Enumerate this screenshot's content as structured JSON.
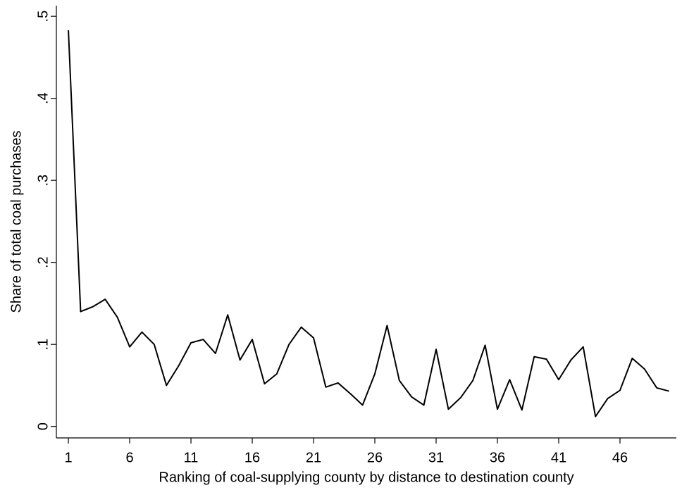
{
  "chart_data": {
    "type": "line",
    "x_label": "Ranking of coal-supplying county by distance to destination county",
    "y_label": "Share of total coal purchases",
    "x": [
      1,
      2,
      3,
      4,
      5,
      6,
      7,
      8,
      9,
      10,
      11,
      12,
      13,
      14,
      15,
      16,
      17,
      18,
      19,
      20,
      21,
      22,
      23,
      24,
      25,
      26,
      27,
      28,
      29,
      30,
      31,
      32,
      33,
      34,
      35,
      36,
      37,
      38,
      39,
      40,
      41,
      42,
      43,
      44,
      45,
      46,
      47,
      48,
      49,
      50
    ],
    "series": [
      {
        "color": "#000000",
        "values": [
          0.483,
          0.14,
          0.146,
          0.155,
          0.133,
          0.097,
          0.115,
          0.1,
          0.05,
          0.074,
          0.102,
          0.106,
          0.089,
          0.136,
          0.081,
          0.106,
          0.052,
          0.064,
          0.1,
          0.121,
          0.108,
          0.048,
          0.053,
          0.04,
          0.026,
          0.064,
          0.123,
          0.056,
          0.036,
          0.026,
          0.094,
          0.021,
          0.035,
          0.056,
          0.099,
          0.021,
          0.057,
          0.02,
          0.085,
          0.082,
          0.057,
          0.081,
          0.097,
          0.012,
          0.034,
          0.044,
          0.083,
          0.07,
          0.047,
          0.043
        ]
      }
    ],
    "xlim": [
      0.02,
      50.6
    ],
    "xticks": [
      1,
      6,
      11,
      16,
      21,
      26,
      31,
      36,
      41,
      46
    ],
    "ylim": [
      -0.014,
      0.513
    ],
    "yticks": [
      0,
      {
        "value": 0.1,
        "label": ".1"
      },
      {
        "value": 0.2,
        "label": ".2"
      },
      {
        "value": 0.3,
        "label": ".3"
      },
      {
        "value": 0.4,
        "label": ".4"
      },
      {
        "value": 0.5,
        "label": ".5"
      }
    ],
    "grid": false
  }
}
